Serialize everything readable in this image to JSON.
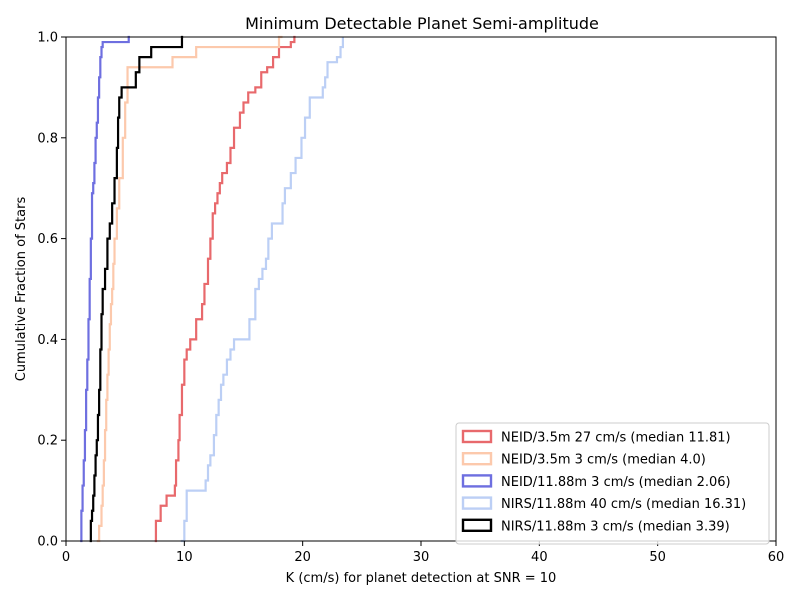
{
  "chart_data": {
    "type": "line",
    "step": true,
    "title": "Minimum Detectable Planet Semi-amplitude",
    "xlabel": "K (cm/s) for planet detection at SNR = 10",
    "ylabel": "Cumulative Fraction of Stars",
    "xlim": [
      0,
      60
    ],
    "ylim": [
      0,
      1.0
    ],
    "xticks": [
      0,
      10,
      20,
      30,
      40,
      50,
      60
    ],
    "xtick_labels": [
      "0",
      "10",
      "20",
      "30",
      "40",
      "50",
      "60"
    ],
    "yticks": [
      0.0,
      0.2,
      0.4,
      0.6,
      0.8,
      1.0
    ],
    "ytick_labels": [
      "0.0",
      "0.2",
      "0.4",
      "0.6",
      "0.8",
      "1.0"
    ],
    "grid": false,
    "legend_position": "bottom-right",
    "series": [
      {
        "name": "NEID/3.5m 27 cm/s (median 11.81)",
        "color": "#e8696c",
        "x": [
          7.5,
          7.6,
          8.0,
          8.5,
          9.2,
          9.3,
          9.5,
          9.6,
          9.8,
          10.0,
          10.2,
          10.5,
          11.0,
          11.5,
          11.7,
          12.0,
          12.2,
          12.4,
          12.6,
          12.8,
          13.0,
          13.2,
          13.6,
          13.9,
          14.2,
          14.7,
          15.0,
          15.4,
          16.0,
          16.5,
          17.0,
          17.5,
          18.0,
          19.0,
          19.3,
          19.4
        ],
        "y": [
          0.0,
          0.04,
          0.07,
          0.09,
          0.11,
          0.16,
          0.2,
          0.25,
          0.31,
          0.36,
          0.38,
          0.4,
          0.44,
          0.47,
          0.51,
          0.56,
          0.6,
          0.65,
          0.67,
          0.69,
          0.71,
          0.73,
          0.75,
          0.78,
          0.82,
          0.85,
          0.87,
          0.89,
          0.9,
          0.93,
          0.94,
          0.96,
          0.98,
          0.99,
          1.0,
          1.0
        ]
      },
      {
        "name": "NEID/3.5m 3 cm/s (median 4.0)",
        "color": "#fcc9ac",
        "x": [
          2.6,
          2.8,
          3.0,
          3.1,
          3.2,
          3.3,
          3.4,
          3.5,
          3.6,
          3.7,
          3.8,
          3.9,
          4.0,
          4.1,
          4.3,
          4.5,
          4.8,
          5.0,
          5.2,
          6.5,
          9.0,
          11.0,
          18.0,
          18.3
        ],
        "y": [
          0.0,
          0.03,
          0.07,
          0.11,
          0.16,
          0.22,
          0.28,
          0.33,
          0.38,
          0.43,
          0.47,
          0.5,
          0.55,
          0.6,
          0.66,
          0.72,
          0.8,
          0.87,
          0.94,
          0.94,
          0.96,
          0.98,
          1.0,
          1.0
        ]
      },
      {
        "name": "NEID/11.88m 3 cm/s (median 2.06)",
        "color": "#6e6fe0",
        "x": [
          1.2,
          1.3,
          1.4,
          1.5,
          1.6,
          1.7,
          1.8,
          1.9,
          2.0,
          2.1,
          2.2,
          2.3,
          2.4,
          2.5,
          2.6,
          2.7,
          2.8,
          2.9,
          3.0,
          3.1,
          3.2,
          5.3,
          5.4
        ],
        "y": [
          0.0,
          0.06,
          0.11,
          0.16,
          0.22,
          0.3,
          0.36,
          0.44,
          0.52,
          0.6,
          0.69,
          0.71,
          0.75,
          0.8,
          0.83,
          0.88,
          0.92,
          0.96,
          0.98,
          0.99,
          0.99,
          1.0,
          1.0
        ]
      },
      {
        "name": "NIRS/11.88m 40 cm/s (median 16.31)",
        "color": "#bccff5",
        "x": [
          9.7,
          10.0,
          10.2,
          11.8,
          12.0,
          12.2,
          12.5,
          12.7,
          12.9,
          13.1,
          13.3,
          13.6,
          13.9,
          14.2,
          15.5,
          16.0,
          16.3,
          16.6,
          16.9,
          17.1,
          17.4,
          18.3,
          18.5,
          19.0,
          19.4,
          19.9,
          20.2,
          20.6,
          21.7,
          21.9,
          22.1,
          22.9,
          23.2,
          23.4
        ],
        "y": [
          0.0,
          0.04,
          0.1,
          0.12,
          0.15,
          0.17,
          0.21,
          0.25,
          0.28,
          0.31,
          0.33,
          0.36,
          0.38,
          0.4,
          0.44,
          0.5,
          0.52,
          0.54,
          0.56,
          0.6,
          0.63,
          0.67,
          0.7,
          0.73,
          0.76,
          0.8,
          0.84,
          0.88,
          0.9,
          0.92,
          0.95,
          0.96,
          0.98,
          1.0
        ]
      },
      {
        "name": "NIRS/11.88m 3 cm/s (median 3.39)",
        "color": "#000000",
        "x": [
          2.0,
          2.1,
          2.2,
          2.3,
          2.4,
          2.5,
          2.6,
          2.7,
          2.8,
          2.9,
          3.0,
          3.1,
          3.3,
          3.5,
          3.7,
          3.9,
          4.1,
          4.3,
          4.4,
          4.5,
          4.7,
          5.0,
          5.9,
          6.2,
          6.3,
          7.2,
          8.0,
          9.8,
          9.9
        ],
        "y": [
          0.0,
          0.04,
          0.06,
          0.09,
          0.13,
          0.17,
          0.2,
          0.25,
          0.3,
          0.38,
          0.45,
          0.5,
          0.54,
          0.6,
          0.63,
          0.67,
          0.72,
          0.78,
          0.84,
          0.88,
          0.9,
          0.9,
          0.93,
          0.96,
          0.96,
          0.98,
          0.98,
          1.0,
          1.0
        ]
      }
    ]
  }
}
